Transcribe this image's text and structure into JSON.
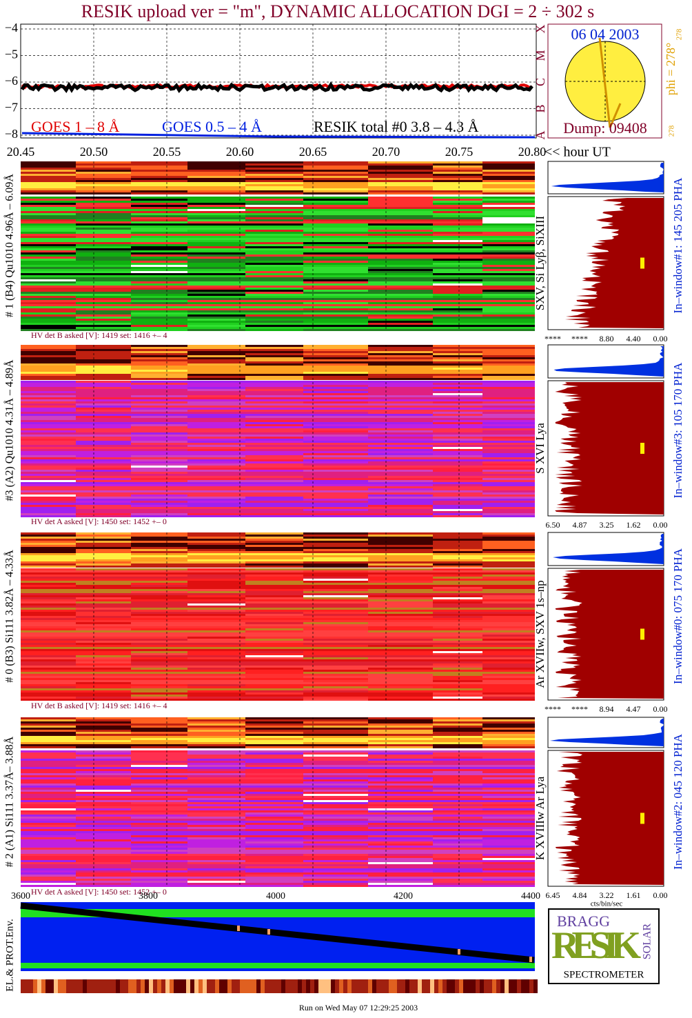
{
  "title": "RESIK upload ver = \"m\", DYNAMIC ALLOCATION  DGI =   2 ÷ 302 s",
  "lightcurve": {
    "yticks": [
      "−4",
      "−5",
      "−6",
      "−7",
      "−8"
    ],
    "legend": [
      "GOES 1 – 8 Å",
      "GOES 0.5 – 4 Å",
      "RESIK total #0  3.8 – 4.3 Å"
    ],
    "classes": [
      "X",
      "M",
      "C",
      "B",
      "A"
    ],
    "xticks": [
      "20.45",
      "20.50",
      "20.55",
      "20.60",
      "20.65",
      "20.70",
      "20.75",
      "20.80"
    ],
    "xunit": "<< hour UT"
  },
  "sun": {
    "date": "06 04 2003",
    "phi": "phi = 278°",
    "phi_sup": "278",
    "corner": "278",
    "dump": "Dump: 09408"
  },
  "panels": [
    {
      "label": "# 1 (B4) Qu1010 4.96Å – 6.09Å",
      "lines": "SXV, Si Lyβ, SiXIII",
      "hv": "HV det B asked [V]:  1419 set:  1416 +–   4",
      "hist_ticks": [
        "****",
        "****",
        "8.80",
        "4.40",
        "0.00"
      ],
      "window": "In–window#1:  145 205 PHA"
    },
    {
      "label": "#3 (A2) Qu1010  4.31Å – 4.89Å",
      "lines": "S XVI Lya",
      "hv": "HV det A asked [V]:  1450 set:  1452 +–   0",
      "hist_ticks": [
        "6.50",
        "4.87",
        "3.25",
        "1.62",
        "0.00"
      ],
      "window": "In–window#3:  105 170 PHA"
    },
    {
      "label": "# 0 (B3) Si111  3.82Å – 4.33Å",
      "lines": "Ar XVIIw,  SXV 1s–np",
      "hv": "HV det B asked [V]:  1419 set:  1416 +–   4",
      "hist_ticks": [
        "****",
        "****",
        "8.94",
        "4.47",
        "0.00"
      ],
      "window": "In–window#0:  075 170 PHA"
    },
    {
      "label": "# 2 (A1) Si111  3.37Å– 3.88Å",
      "lines": "K XVIIIw  Ar Lya",
      "hv": "HV det A asked [V]:  1450 set:  1452 +–   0",
      "hist_ticks": [
        "6.45",
        "4.84",
        "3.22",
        "1.61",
        "0.00"
      ],
      "window": "In–window#2:  045 120 PHA"
    }
  ],
  "hist_unit": "cts/bin/sec",
  "env": {
    "xticks": [
      "3600",
      "3800",
      "4000",
      "4200",
      "4400"
    ],
    "label": "EL.& PROT.Env."
  },
  "logo": {
    "top": "BRAGG",
    "middle": "RESIK",
    "side": "SOLAR",
    "bottom": "SPECTROMETER"
  },
  "footer": "Run on Wed May 07 12:29:25 2003"
}
